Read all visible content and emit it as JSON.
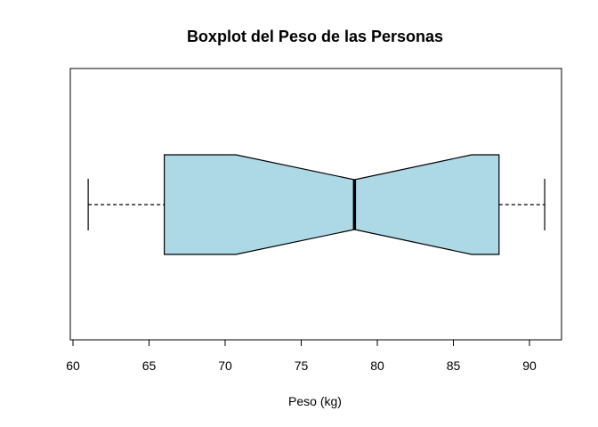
{
  "chart_data": {
    "type": "boxplot",
    "title": "Boxplot del Peso de las Personas",
    "xlabel": "Peso (kg)",
    "ylabel": "",
    "orientation": "horizontal",
    "notched": true,
    "xlim": [
      60,
      92
    ],
    "ticks": [
      60,
      65,
      70,
      75,
      80,
      85,
      90
    ],
    "tick_labels": [
      "60",
      "65",
      "70",
      "75",
      "80",
      "85",
      "90"
    ],
    "stats": {
      "whisker_low": 61,
      "q1": 66,
      "notch_low": 70.7,
      "median": 78.5,
      "notch_high": 86.2,
      "q3": 88,
      "whisker_high": 91
    },
    "box_color": "#add8e6",
    "line_color": "#000000"
  }
}
